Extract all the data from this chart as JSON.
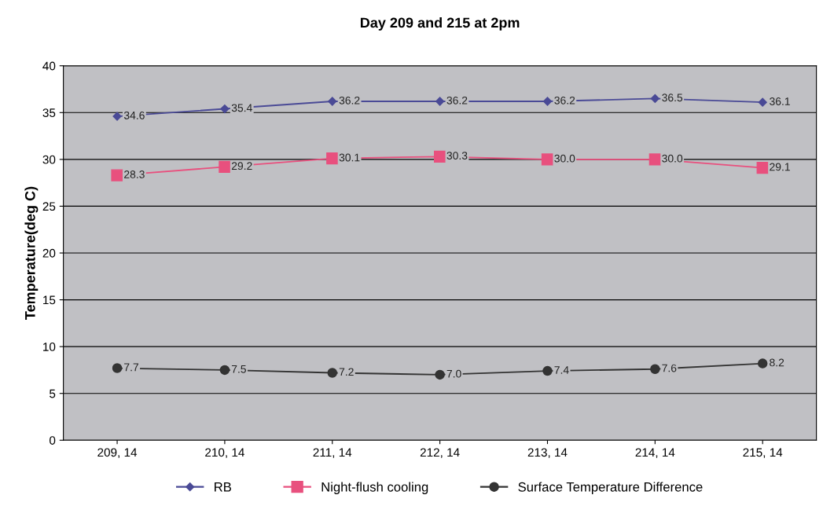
{
  "chart_data": {
    "type": "line",
    "title": "Day 209 and 215 at 2pm",
    "ylabel": "Temperature(deg C)",
    "categories": [
      "209, 14",
      "210, 14",
      "211, 14",
      "212, 14",
      "213, 14",
      "214, 14",
      "215, 14"
    ],
    "series": [
      {
        "name": "RB",
        "color": "#4a4a96",
        "marker": "diamond",
        "values": [
          34.6,
          35.4,
          36.2,
          36.2,
          36.2,
          36.5,
          36.1
        ],
        "value_labels": [
          "34.6",
          "35.4",
          "36.2",
          "36.2",
          "36.2",
          "36.5",
          "36.1"
        ]
      },
      {
        "name": "Night-flush cooling",
        "color": "#e8507e",
        "marker": "square",
        "values": [
          28.3,
          29.2,
          30.1,
          30.3,
          30.0,
          30.0,
          29.1
        ],
        "value_labels": [
          "28.3",
          "29.2",
          "30.1",
          "30.3",
          "30.0",
          "30.0",
          "29.1"
        ]
      },
      {
        "name": "Surface Temperature Difference",
        "color": "#333333",
        "marker": "circle",
        "values": [
          7.7,
          7.5,
          7.2,
          7.0,
          7.4,
          7.6,
          8.2
        ],
        "value_labels": [
          "7.7",
          "7.5",
          "7.2",
          "7.0",
          "7.4",
          "7.6",
          "8.2"
        ]
      }
    ],
    "ylim": [
      0,
      40
    ],
    "yticks": [
      0,
      5,
      10,
      15,
      20,
      25,
      30,
      35,
      40
    ],
    "grid": "y",
    "legend": "bottom",
    "line_style": "solid"
  }
}
